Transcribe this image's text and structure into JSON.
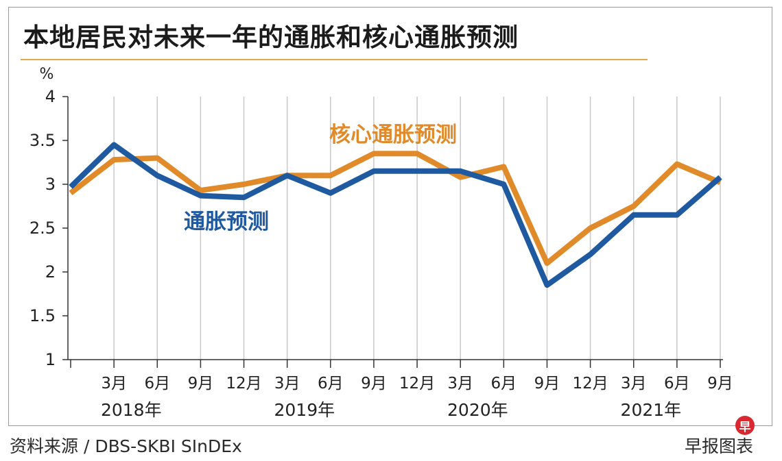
{
  "title": "本地居民对未来一年的通胀和核心通胀预测",
  "footer": {
    "source": "资料来源 / DBS-SKBI SInDEx",
    "brand": "早报图表",
    "brand_badge": "早"
  },
  "colors": {
    "inflation": "#1f5aa0",
    "core_inflation": "#e08a2a",
    "grid": "#c8c8c8",
    "title_rule": "#e3a74a"
  },
  "chart_data": {
    "type": "line",
    "title": "本地居民对未来一年的通胀和核心通胀预测",
    "ylabel": "%",
    "ylim": [
      1,
      4
    ],
    "yticks": [
      "1",
      "1.5",
      "2",
      "2.5",
      "3",
      "3.5",
      "4"
    ],
    "grid": true,
    "x": [
      "2017-12",
      "2018-03",
      "2018-06",
      "2018-09",
      "2018-12",
      "2019-03",
      "2019-06",
      "2019-09",
      "2019-12",
      "2020-03",
      "2020-06",
      "2020-09",
      "2020-12",
      "2021-03",
      "2021-06",
      "2021-09"
    ],
    "x_tick_labels": [
      "",
      "3月",
      "6月",
      "9月",
      "12月",
      "3月",
      "6月",
      "9月",
      "12月",
      "3月",
      "6月",
      "9月",
      "12月",
      "3月",
      "6月",
      "9月"
    ],
    "year_labels": [
      {
        "label": "2018年",
        "x": "2018-06"
      },
      {
        "label": "2019年",
        "x": "2019-06"
      },
      {
        "label": "2020年",
        "x": "2020-06"
      },
      {
        "label": "2021年",
        "x": "2021-06"
      }
    ],
    "series": [
      {
        "name": "通胀预测",
        "color": "#1f5aa0",
        "values": [
          2.97,
          3.45,
          3.1,
          2.87,
          2.85,
          3.1,
          2.9,
          3.15,
          3.15,
          3.15,
          3.0,
          1.85,
          2.2,
          2.65,
          2.65,
          3.08
        ]
      },
      {
        "name": "核心通胀预测",
        "color": "#e08a2a",
        "values": [
          2.9,
          3.28,
          3.3,
          2.93,
          3.0,
          3.1,
          3.1,
          3.35,
          3.35,
          3.08,
          3.2,
          2.1,
          2.5,
          2.75,
          3.23,
          3.02
        ]
      }
    ]
  }
}
